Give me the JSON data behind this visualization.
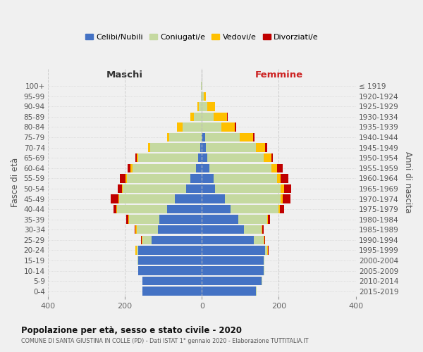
{
  "age_groups": [
    "0-4",
    "5-9",
    "10-14",
    "15-19",
    "20-24",
    "25-29",
    "30-34",
    "35-39",
    "40-44",
    "45-49",
    "50-54",
    "55-59",
    "60-64",
    "65-69",
    "70-74",
    "75-79",
    "80-84",
    "85-89",
    "90-94",
    "95-99",
    "100+"
  ],
  "birth_years": [
    "2015-2019",
    "2010-2014",
    "2005-2009",
    "2000-2004",
    "1995-1999",
    "1990-1994",
    "1985-1989",
    "1980-1984",
    "1975-1979",
    "1970-1974",
    "1965-1969",
    "1960-1964",
    "1955-1959",
    "1950-1954",
    "1945-1949",
    "1940-1944",
    "1935-1939",
    "1930-1934",
    "1925-1929",
    "1920-1924",
    "≤ 1919"
  ],
  "male": {
    "celibi": [
      155,
      155,
      165,
      165,
      165,
      130,
      115,
      110,
      90,
      70,
      40,
      30,
      15,
      10,
      5,
      0,
      0,
      0,
      0,
      0,
      0
    ],
    "coniugati": [
      0,
      0,
      0,
      2,
      5,
      25,
      55,
      80,
      130,
      145,
      165,
      165,
      165,
      155,
      130,
      85,
      50,
      20,
      8,
      3,
      2
    ],
    "vedovi": [
      0,
      0,
      0,
      0,
      2,
      2,
      2,
      2,
      2,
      2,
      3,
      3,
      5,
      5,
      5,
      5,
      15,
      10,
      3,
      0,
      0
    ],
    "divorziati": [
      0,
      0,
      0,
      0,
      0,
      2,
      2,
      5,
      8,
      20,
      10,
      15,
      8,
      3,
      0,
      0,
      0,
      0,
      0,
      0,
      0
    ]
  },
  "female": {
    "nubili": [
      140,
      155,
      160,
      160,
      165,
      135,
      110,
      95,
      75,
      60,
      35,
      30,
      20,
      15,
      10,
      8,
      0,
      0,
      0,
      0,
      0
    ],
    "coniugate": [
      2,
      2,
      2,
      2,
      5,
      25,
      45,
      75,
      125,
      145,
      170,
      165,
      160,
      145,
      130,
      90,
      50,
      30,
      15,
      5,
      2
    ],
    "vedove": [
      0,
      0,
      0,
      0,
      2,
      2,
      2,
      2,
      3,
      5,
      8,
      10,
      15,
      20,
      25,
      35,
      35,
      35,
      20,
      5,
      0
    ],
    "divorziate": [
      0,
      0,
      0,
      0,
      2,
      2,
      3,
      5,
      10,
      20,
      20,
      20,
      15,
      5,
      5,
      3,
      5,
      2,
      0,
      0,
      0
    ]
  },
  "colors": {
    "celibi_nubili": "#4472c4",
    "coniugati": "#c5d9a0",
    "vedovi": "#ffc000",
    "divorziati": "#c00000"
  },
  "xlim": 400,
  "title": "Popolazione per età, sesso e stato civile - 2020",
  "subtitle": "COMUNE DI SANTA GIUSTINA IN COLLE (PD) - Dati ISTAT 1° gennaio 2020 - Elaborazione TUTTITALIA.IT",
  "ylabel_left": "Fasce di età",
  "ylabel_right": "Anni di nascita",
  "xlabel_left": "Maschi",
  "xlabel_right": "Femmine",
  "legend_labels": [
    "Celibi/Nubili",
    "Coniugati/e",
    "Vedovi/e",
    "Divorziati/e"
  ],
  "bg_color": "#f0f0f0",
  "grid_color": "#cccccc"
}
